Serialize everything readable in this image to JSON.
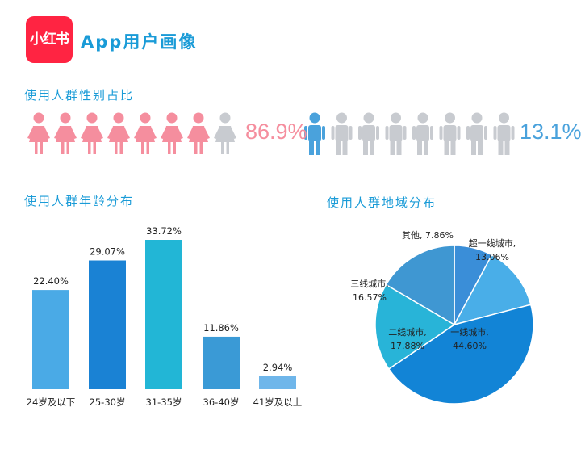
{
  "app": {
    "logo_text": "小红书",
    "title": "App用户画像"
  },
  "colors": {
    "accent": "#1a9bd7",
    "female": "#f58e9e",
    "male": "#4aa2dc",
    "inactive": "#c8cbd0",
    "logo": "#ff2442"
  },
  "gender": {
    "title": "使用人群性别占比",
    "female_pct_label": "86.9%",
    "male_pct_label": "13.1%",
    "female_share": 86.9,
    "male_share": 13.1,
    "icons_per_group": 8,
    "female_icon": "female-person-icon",
    "male_icon": "male-person-icon"
  },
  "chart_data": [
    {
      "type": "bar",
      "title": "使用人群年龄分布",
      "categories": [
        "24岁及以下",
        "25-30岁",
        "31-35岁",
        "36-40岁",
        "41岁及以上"
      ],
      "values": [
        22.4,
        29.07,
        33.72,
        11.86,
        2.94
      ],
      "value_labels": [
        "22.40%",
        "29.07%",
        "33.72%",
        "11.86%",
        "2.94%"
      ],
      "colors": [
        "#4aaae6",
        "#1a82d4",
        "#22b6d6",
        "#3a9ad6",
        "#6fb6ea"
      ],
      "ylim": [
        0,
        33.72
      ]
    },
    {
      "type": "pie",
      "title": "使用人群地域分布",
      "slices": [
        {
          "name": "其他",
          "value": 7.86,
          "label": "其他, 7.86%",
          "color": "#3a8ed8"
        },
        {
          "name": "超一线城市",
          "value": 13.06,
          "label": "超一线城市,\n13.06%",
          "color": "#49aee8"
        },
        {
          "name": "一线城市",
          "value": 44.6,
          "label": "一线城市,\n44.60%",
          "color": "#1284d6"
        },
        {
          "name": "二线城市",
          "value": 17.88,
          "label": "二线城市,\n17.88%",
          "color": "#28b4d8"
        },
        {
          "name": "三线城市",
          "value": 16.57,
          "label": "三线城市,\n16.57%",
          "color": "#3f97d2"
        }
      ]
    }
  ]
}
